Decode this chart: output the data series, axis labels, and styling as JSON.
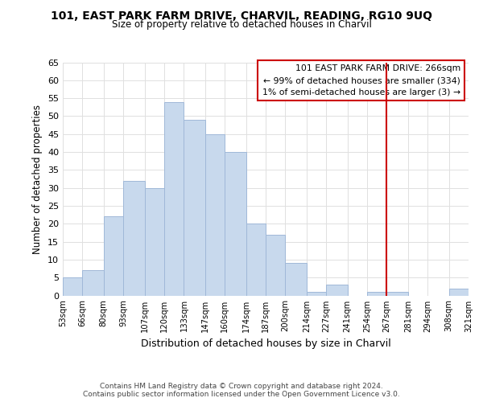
{
  "title": "101, EAST PARK FARM DRIVE, CHARVIL, READING, RG10 9UQ",
  "subtitle": "Size of property relative to detached houses in Charvil",
  "xlabel": "Distribution of detached houses by size in Charvil",
  "ylabel": "Number of detached properties",
  "bar_color": "#c8d9ed",
  "bar_edge_color": "#a0b8d8",
  "bins": [
    53,
    66,
    80,
    93,
    107,
    120,
    133,
    147,
    160,
    174,
    187,
    200,
    214,
    227,
    241,
    254,
    267,
    281,
    294,
    308,
    321
  ],
  "counts": [
    5,
    7,
    22,
    32,
    30,
    54,
    49,
    45,
    40,
    20,
    17,
    9,
    1,
    3,
    0,
    1,
    1,
    0,
    0,
    2
  ],
  "tick_labels": [
    "53sqm",
    "66sqm",
    "80sqm",
    "93sqm",
    "107sqm",
    "120sqm",
    "133sqm",
    "147sqm",
    "160sqm",
    "174sqm",
    "187sqm",
    "200sqm",
    "214sqm",
    "227sqm",
    "241sqm",
    "254sqm",
    "267sqm",
    "281sqm",
    "294sqm",
    "308sqm",
    "321sqm"
  ],
  "vline_x": 267,
  "vline_color": "#cc0000",
  "annotation_line1": "101 EAST PARK FARM DRIVE: 266sqm",
  "annotation_line2": "← 99% of detached houses are smaller (334)",
  "annotation_line3": "1% of semi-detached houses are larger (3) →",
  "ylim": [
    0,
    65
  ],
  "yticks": [
    0,
    5,
    10,
    15,
    20,
    25,
    30,
    35,
    40,
    45,
    50,
    55,
    60,
    65
  ],
  "footer_line1": "Contains HM Land Registry data © Crown copyright and database right 2024.",
  "footer_line2": "Contains public sector information licensed under the Open Government Licence v3.0.",
  "background_color": "#ffffff",
  "grid_color": "#e0e0e0"
}
